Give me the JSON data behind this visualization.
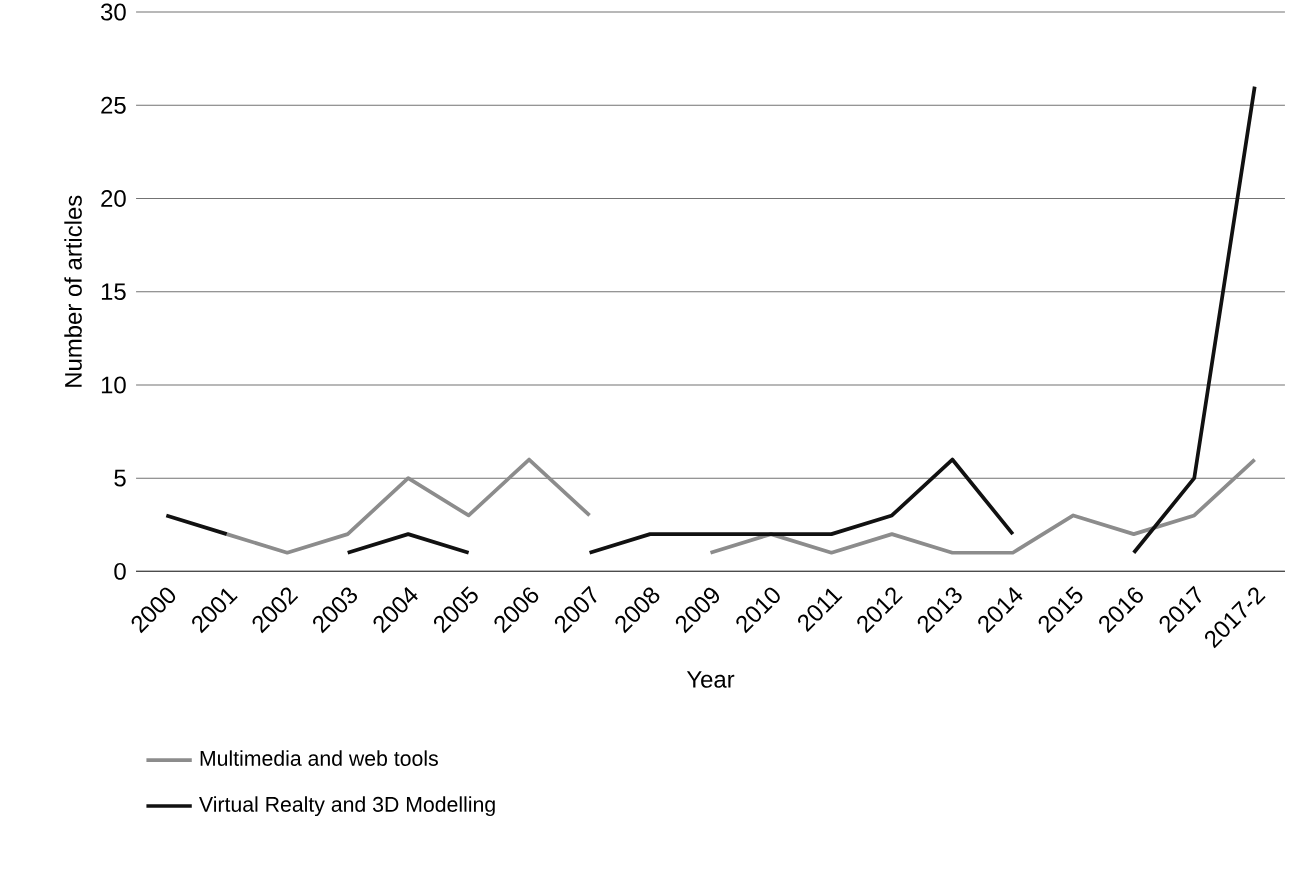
{
  "chart_data": {
    "type": "line",
    "xlabel": "Year",
    "ylabel": "Number of articles",
    "categories": [
      "2000",
      "2001",
      "2002",
      "2003",
      "2004",
      "2005",
      "2006",
      "2007",
      "2008",
      "2009",
      "2010",
      "2011",
      "2012",
      "2013",
      "2014",
      "2015",
      "2016",
      "2017",
      "2017-2"
    ],
    "series": [
      {
        "name": "Multimedia and web tools",
        "color": "#8c8c8c",
        "values": [
          null,
          2,
          1,
          2,
          5,
          3,
          6,
          3,
          null,
          1,
          2,
          1,
          2,
          1,
          1,
          3,
          2,
          3,
          6
        ]
      },
      {
        "name": "Virtual Realty and 3D Modelling",
        "color": "#111111",
        "values": [
          3,
          2,
          null,
          1,
          2,
          1,
          null,
          1,
          2,
          2,
          2,
          2,
          3,
          6,
          2,
          null,
          1,
          5,
          26
        ]
      }
    ],
    "ylim": [
      0,
      30
    ],
    "yticks": [
      0,
      5,
      10,
      15,
      20,
      25,
      30
    ],
    "grid": "y",
    "legend": "bottom",
    "marker": "none",
    "line_style": "solid"
  }
}
